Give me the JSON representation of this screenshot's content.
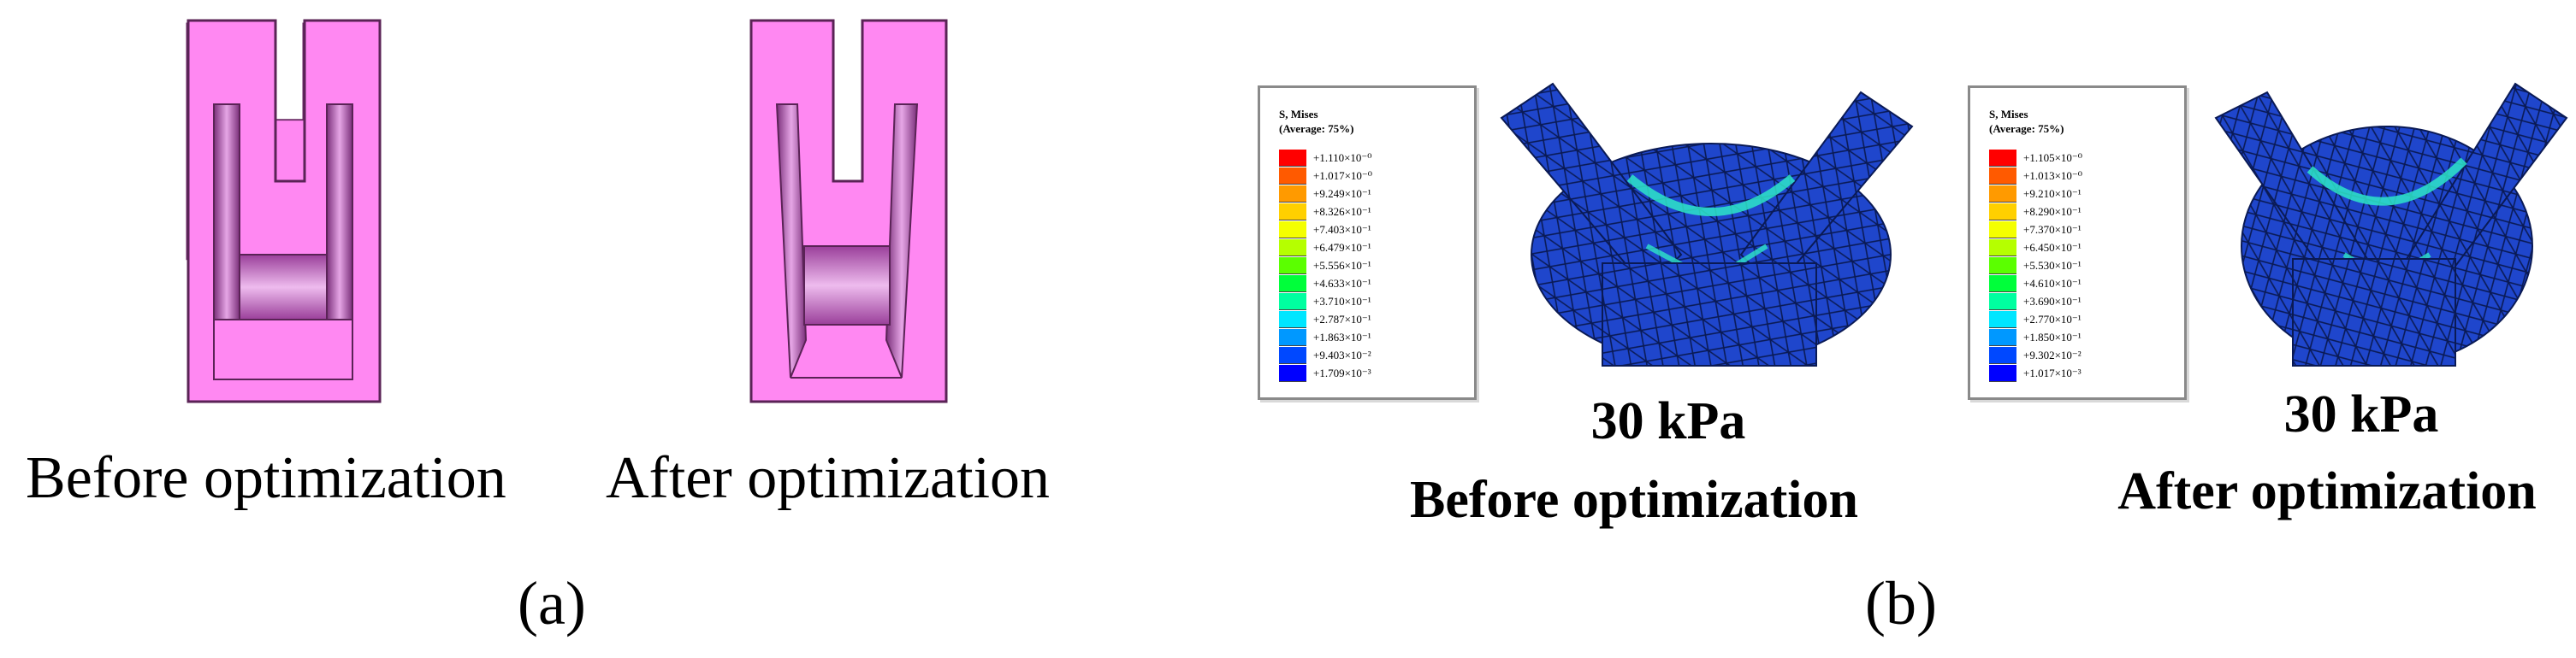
{
  "panel_a": {
    "label": "(a)",
    "captions": [
      "Before optimization",
      "After optimization"
    ]
  },
  "panel_b": {
    "label": "(b)",
    "simulations": [
      {
        "legend_title": [
          "S, Mises",
          "(Average: 75%)"
        ],
        "legend_values": [
          "+1.110×10⁻⁰",
          "+1.017×10⁻⁰",
          "+9.249×10⁻¹",
          "+8.326×10⁻¹",
          "+7.403×10⁻¹",
          "+6.479×10⁻¹",
          "+5.556×10⁻¹",
          "+4.633×10⁻¹",
          "+3.710×10⁻¹",
          "+2.787×10⁻¹",
          "+1.863×10⁻¹",
          "+9.403×10⁻²",
          "+1.709×10⁻³"
        ],
        "pressure": "30 kPa",
        "caption": "Before optimization"
      },
      {
        "legend_title": [
          "S, Mises",
          "(Average: 75%)"
        ],
        "legend_values": [
          "+1.105×10⁻⁰",
          "+1.013×10⁻⁰",
          "+9.210×10⁻¹",
          "+8.290×10⁻¹",
          "+7.370×10⁻¹",
          "+6.450×10⁻¹",
          "+5.530×10⁻¹",
          "+4.610×10⁻¹",
          "+3.690×10⁻¹",
          "+2.770×10⁻¹",
          "+1.850×10⁻¹",
          "+9.302×10⁻²",
          "+1.017×10⁻³"
        ],
        "pressure": "30 kPa",
        "caption": "After optimization"
      }
    ],
    "legend_colors": [
      "#ff0000",
      "#ff5a00",
      "#ff9a00",
      "#ffd000",
      "#f4ff00",
      "#b5ff00",
      "#5bff00",
      "#00ff3a",
      "#00ffa0",
      "#00e6ff",
      "#0098ff",
      "#0048ff",
      "#0000ff"
    ]
  },
  "colors": {
    "body_fill": "#ff88f2",
    "body_stroke": "#6b2a66",
    "membrane": "#9b4a9b",
    "mesh_blue": "#1f46cc",
    "mesh_line": "#0a1a55",
    "stress_green": "#2ee6c8"
  }
}
